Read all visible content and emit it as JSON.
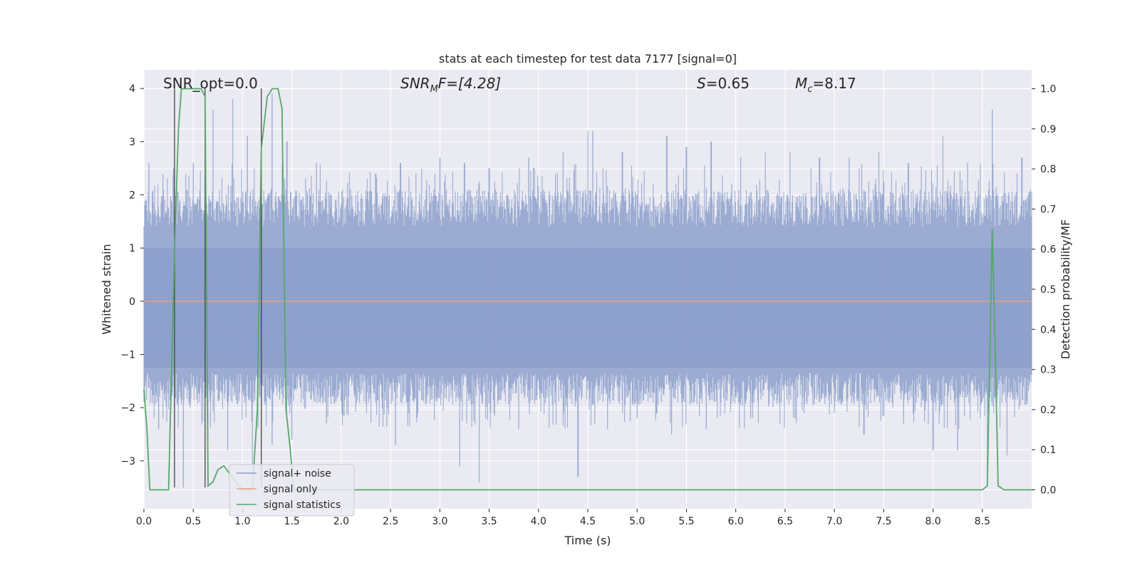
{
  "chart_data": {
    "type": "line",
    "title": "stats at each timestep for test data 7177 [signal=0]",
    "xlabel": "Time (s)",
    "ylabel_left": "Whitened strain",
    "ylabel_right": "Detection probability/MF",
    "xlim": [
      0.0,
      9.0
    ],
    "ylim_left": [
      -3.9,
      4.35
    ],
    "ylim_right": [
      -0.047,
      1.047
    ],
    "x_ticks": [
      0.0,
      0.5,
      1.0,
      1.5,
      2.0,
      2.5,
      3.0,
      3.5,
      4.0,
      4.5,
      5.0,
      5.5,
      6.0,
      6.5,
      7.0,
      7.5,
      8.0,
      8.5
    ],
    "x_tick_labels": [
      "0.0",
      "0.5",
      "1.0",
      "1.5",
      "2.0",
      "2.5",
      "3.0",
      "3.5",
      "4.0",
      "4.5",
      "5.0",
      "5.5",
      "6.0",
      "6.5",
      "7.0",
      "7.5",
      "8.0",
      "8.5"
    ],
    "y_left_ticks": [
      -3,
      -2,
      -1,
      0,
      1,
      2,
      3,
      4
    ],
    "y_left_tick_labels": [
      "−3",
      "−2",
      "−1",
      "0",
      "1",
      "2",
      "3",
      "4"
    ],
    "y_right_ticks": [
      0.0,
      0.1,
      0.2,
      0.3,
      0.4,
      0.5,
      0.6,
      0.7,
      0.8,
      0.9,
      1.0
    ],
    "y_right_tick_labels": [
      "0.0",
      "0.1",
      "0.2",
      "0.3",
      "0.4",
      "0.5",
      "0.6",
      "0.7",
      "0.8",
      "0.9",
      "1.0"
    ],
    "annotations": {
      "snr_opt": "SNR_opt=0.0",
      "snr_mf_base": "SNR",
      "snr_mf_sub": "M",
      "snr_mf_rest": "F=[4.28]",
      "s_var": "S",
      "s_val": "=0.65",
      "mc_var": "M",
      "mc_sub": "c",
      "mc_val": "=8.17"
    },
    "vertical_markers": [
      0.31,
      0.62,
      1.19
    ],
    "series": [
      {
        "name": "signal+ noise",
        "color": "#8da0cb",
        "axis": "left",
        "description": "dense whitened noise, roughly between -3.4 and 3.6",
        "peaks_x": [
          0.05,
          0.3,
          0.5,
          0.7,
          0.9,
          1.05,
          1.3,
          1.45,
          1.75,
          2.35,
          2.6,
          3.0,
          3.25,
          3.5,
          3.9,
          4.25,
          4.5,
          4.55,
          4.85,
          5.3,
          5.5,
          5.75,
          6.05,
          6.3,
          6.55,
          6.85,
          7.15,
          7.45,
          7.75,
          8.1,
          8.35,
          8.6,
          8.9
        ],
        "peaks_y": [
          2.6,
          2.5,
          2.6,
          3.6,
          3.8,
          3.1,
          3.9,
          3.0,
          2.6,
          2.4,
          2.6,
          2.7,
          2.6,
          2.5,
          2.7,
          2.8,
          3.2,
          3.2,
          2.8,
          3.1,
          2.9,
          3.0,
          2.7,
          2.8,
          2.8,
          2.7,
          2.7,
          2.8,
          2.6,
          3.1,
          2.6,
          3.6,
          2.7
        ],
        "troughs_x": [
          0.15,
          0.4,
          0.65,
          0.85,
          1.1,
          1.3,
          1.5,
          1.85,
          2.55,
          3.2,
          3.4,
          3.8,
          4.4,
          4.7,
          5.0,
          5.35,
          5.7,
          6.15,
          6.6,
          7.0,
          7.3,
          7.7,
          8.0,
          8.25,
          8.55,
          8.75
        ],
        "troughs_y": [
          -2.4,
          -3.5,
          -2.6,
          -2.8,
          -3.1,
          -2.7,
          -2.6,
          -2.3,
          -2.7,
          -3.1,
          -3.4,
          -2.4,
          -3.3,
          -2.4,
          -2.2,
          -2.5,
          -2.4,
          -2.2,
          -2.2,
          -2.1,
          -2.5,
          -2.3,
          -2.8,
          -2.8,
          -3.2,
          -2.9
        ]
      },
      {
        "name": "signal only",
        "color": "#e8a387",
        "axis": "left",
        "x": [
          0.0,
          9.0
        ],
        "y": [
          0.0,
          0.0
        ]
      },
      {
        "name": "signal statistics",
        "color": "#55a868",
        "axis": "right",
        "x": [
          0.0,
          0.03,
          0.06,
          0.1,
          0.2,
          0.25,
          0.28,
          0.31,
          0.35,
          0.38,
          0.5,
          0.58,
          0.62,
          0.65,
          0.7,
          0.75,
          0.81,
          0.9,
          1.0,
          1.1,
          1.15,
          1.19,
          1.25,
          1.3,
          1.36,
          1.4,
          1.44,
          1.48,
          1.52,
          1.6,
          2.0,
          3.0,
          4.0,
          5.0,
          6.0,
          7.0,
          8.0,
          8.5,
          8.55,
          8.6,
          8.63,
          8.66,
          8.72,
          8.8,
          9.0
        ],
        "y": [
          0.25,
          0.15,
          0.0,
          0.0,
          0.0,
          0.0,
          0.3,
          0.6,
          0.9,
          1.0,
          1.0,
          1.0,
          0.98,
          0.01,
          0.02,
          0.05,
          0.06,
          0.03,
          0.0,
          0.0,
          0.2,
          0.85,
          0.98,
          1.0,
          1.0,
          0.95,
          0.2,
          0.11,
          0.0,
          0.0,
          0.0,
          0.0,
          0.0,
          0.0,
          0.0,
          0.0,
          0.0,
          0.0,
          0.01,
          0.65,
          0.35,
          0.01,
          0.0,
          0.0,
          0.0
        ]
      }
    ],
    "legend": {
      "position": "lower-left",
      "entries": [
        {
          "label": "signal+ noise",
          "color": "#8da0cb"
        },
        {
          "label": "signal only",
          "color": "#e8a387"
        },
        {
          "label": "signal statistics",
          "color": "#55a868"
        }
      ]
    }
  }
}
